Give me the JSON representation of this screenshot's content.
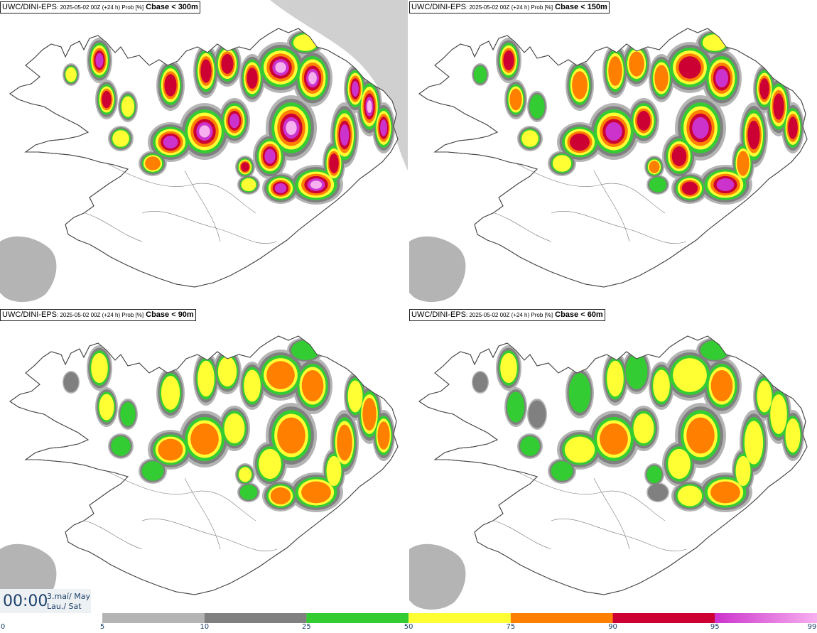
{
  "panels": [
    {
      "model": "UWC/DINI-EPS",
      "meta": ": 2025-05-02 00Z (+24 h) Prob [%]",
      "threshold": "Cbase < 300m",
      "intensity": 1.0
    },
    {
      "model": "UWC/DINI-EPS",
      "meta": ": 2025-05-02 00Z (+24 h) Prob [%]",
      "threshold": "Cbase < 150m",
      "intensity": 0.82
    },
    {
      "model": "UWC/DINI-EPS",
      "meta": ": 2025-05-02 00Z (+24 h) Prob [%]",
      "threshold": "Cbase < 90m",
      "intensity": 0.66
    },
    {
      "model": "UWC/DINI-EPS",
      "meta": ": 2025-05-02 00Z (+24 h) Prob [%]",
      "threshold": "Cbase < 60m",
      "intensity": 0.58
    }
  ],
  "time": {
    "clock": "00:00",
    "date_line1": "3.maí/ May",
    "date_line2": "Lau./ Sat"
  },
  "legend": {
    "ticks": [
      "0",
      "5",
      "10",
      "25",
      "50",
      "75",
      "90",
      "95",
      "99"
    ],
    "bins": [
      {
        "from": 5,
        "to": 10,
        "color": "#b4b4b4"
      },
      {
        "from": 10,
        "to": 25,
        "color": "#808080"
      },
      {
        "from": 25,
        "to": 50,
        "color": "#33cc33"
      },
      {
        "from": 50,
        "to": 75,
        "color": "#ffff33"
      },
      {
        "from": 75,
        "to": 90,
        "color": "#ff7f00"
      },
      {
        "from": 90,
        "to": 95,
        "color": "#cc0033"
      },
      {
        "from": 95,
        "to": 99,
        "color": "#cc33cc"
      },
      {
        "from": 99,
        "to": 100,
        "color": "#f7b0ef"
      }
    ]
  }
}
